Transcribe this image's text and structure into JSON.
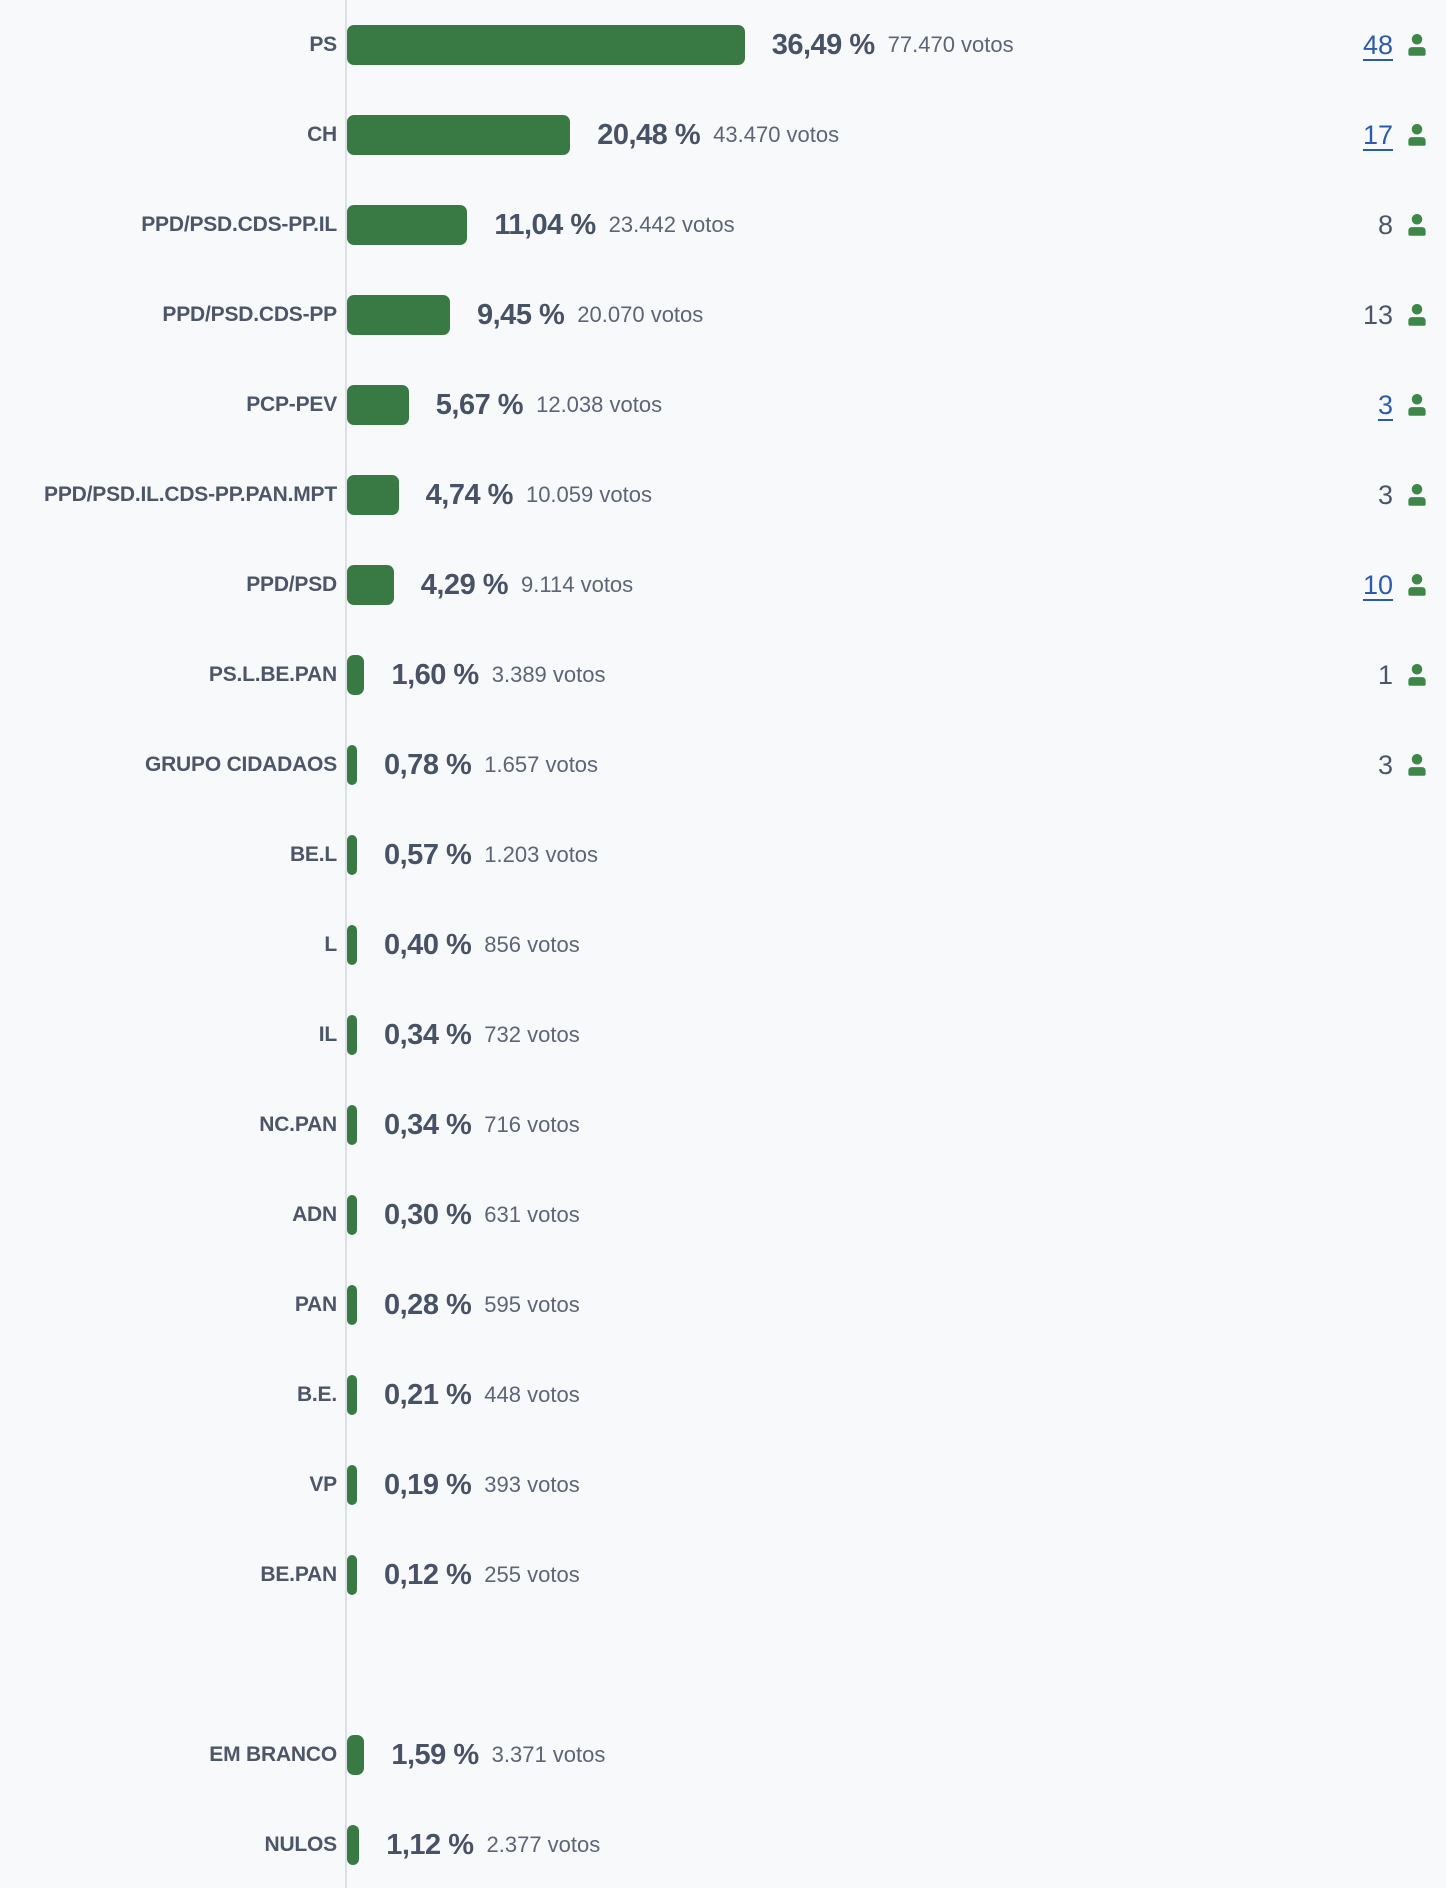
{
  "chart_data": {
    "type": "bar",
    "orientation": "horizontal",
    "title": "",
    "xlabel": "",
    "ylabel": "",
    "xlim": [
      0,
      40
    ],
    "grid": false,
    "legend": false,
    "votes_unit": "votos",
    "separator_before_index": 18,
    "categories": [
      "PS",
      "CH",
      "PPD/PSD.CDS-PP.IL",
      "PPD/PSD.CDS-PP",
      "PCP-PEV",
      "PPD/PSD.IL.CDS-PP.PAN.MPT",
      "PPD/PSD",
      "PS.L.BE.PAN",
      "GRUPO CIDADAOS",
      "BE.L",
      "L",
      "IL",
      "NC.PAN",
      "ADN",
      "PAN",
      "B.E.",
      "VP",
      "BE.PAN",
      "EM BRANCO",
      "NULOS"
    ],
    "values": [
      36.49,
      20.48,
      11.04,
      9.45,
      5.67,
      4.74,
      4.29,
      1.6,
      0.78,
      0.57,
      0.4,
      0.34,
      0.34,
      0.3,
      0.28,
      0.21,
      0.19,
      0.12,
      1.59,
      1.12
    ],
    "value_labels": [
      "36,49 %",
      "20,48 %",
      "11,04 %",
      "9,45 %",
      "5,67 %",
      "4,74 %",
      "4,29 %",
      "1,60 %",
      "0,78 %",
      "0,57 %",
      "0,40 %",
      "0,34 %",
      "0,34 %",
      "0,30 %",
      "0,28 %",
      "0,21 %",
      "0,19 %",
      "0,12 %",
      "1,59 %",
      "1,12 %"
    ],
    "votes": [
      77470,
      43470,
      23442,
      20070,
      12038,
      10059,
      9114,
      3389,
      1657,
      1203,
      856,
      732,
      716,
      631,
      595,
      448,
      393,
      255,
      3371,
      2377
    ],
    "votes_labels": [
      "77.470 votos",
      "43.470 votos",
      "23.442 votos",
      "20.070 votos",
      "12.038 votos",
      "10.059 votos",
      "9.114 votos",
      "3.389 votos",
      "1.657 votos",
      "1.203 votos",
      "856 votos",
      "732 votos",
      "716 votos",
      "631 votos",
      "595 votos",
      "448 votos",
      "393 votos",
      "255 votos",
      "3.371 votos",
      "2.377 votos"
    ],
    "mandates": [
      48,
      17,
      8,
      13,
      3,
      3,
      10,
      1,
      3,
      null,
      null,
      null,
      null,
      null,
      null,
      null,
      null,
      null,
      null,
      null
    ],
    "mandates_links": [
      true,
      true,
      false,
      false,
      true,
      false,
      true,
      false,
      false,
      false,
      false,
      false,
      false,
      false,
      false,
      false,
      false,
      false,
      false,
      false
    ]
  },
  "icons": {
    "mandate_icon": "person-icon"
  },
  "colors": {
    "background": "#f8f9fb",
    "bar_green": "#397a44",
    "icon_green": "#3d8748",
    "link_blue": "#2b5cab",
    "axis_gray": "#dce1e8"
  }
}
